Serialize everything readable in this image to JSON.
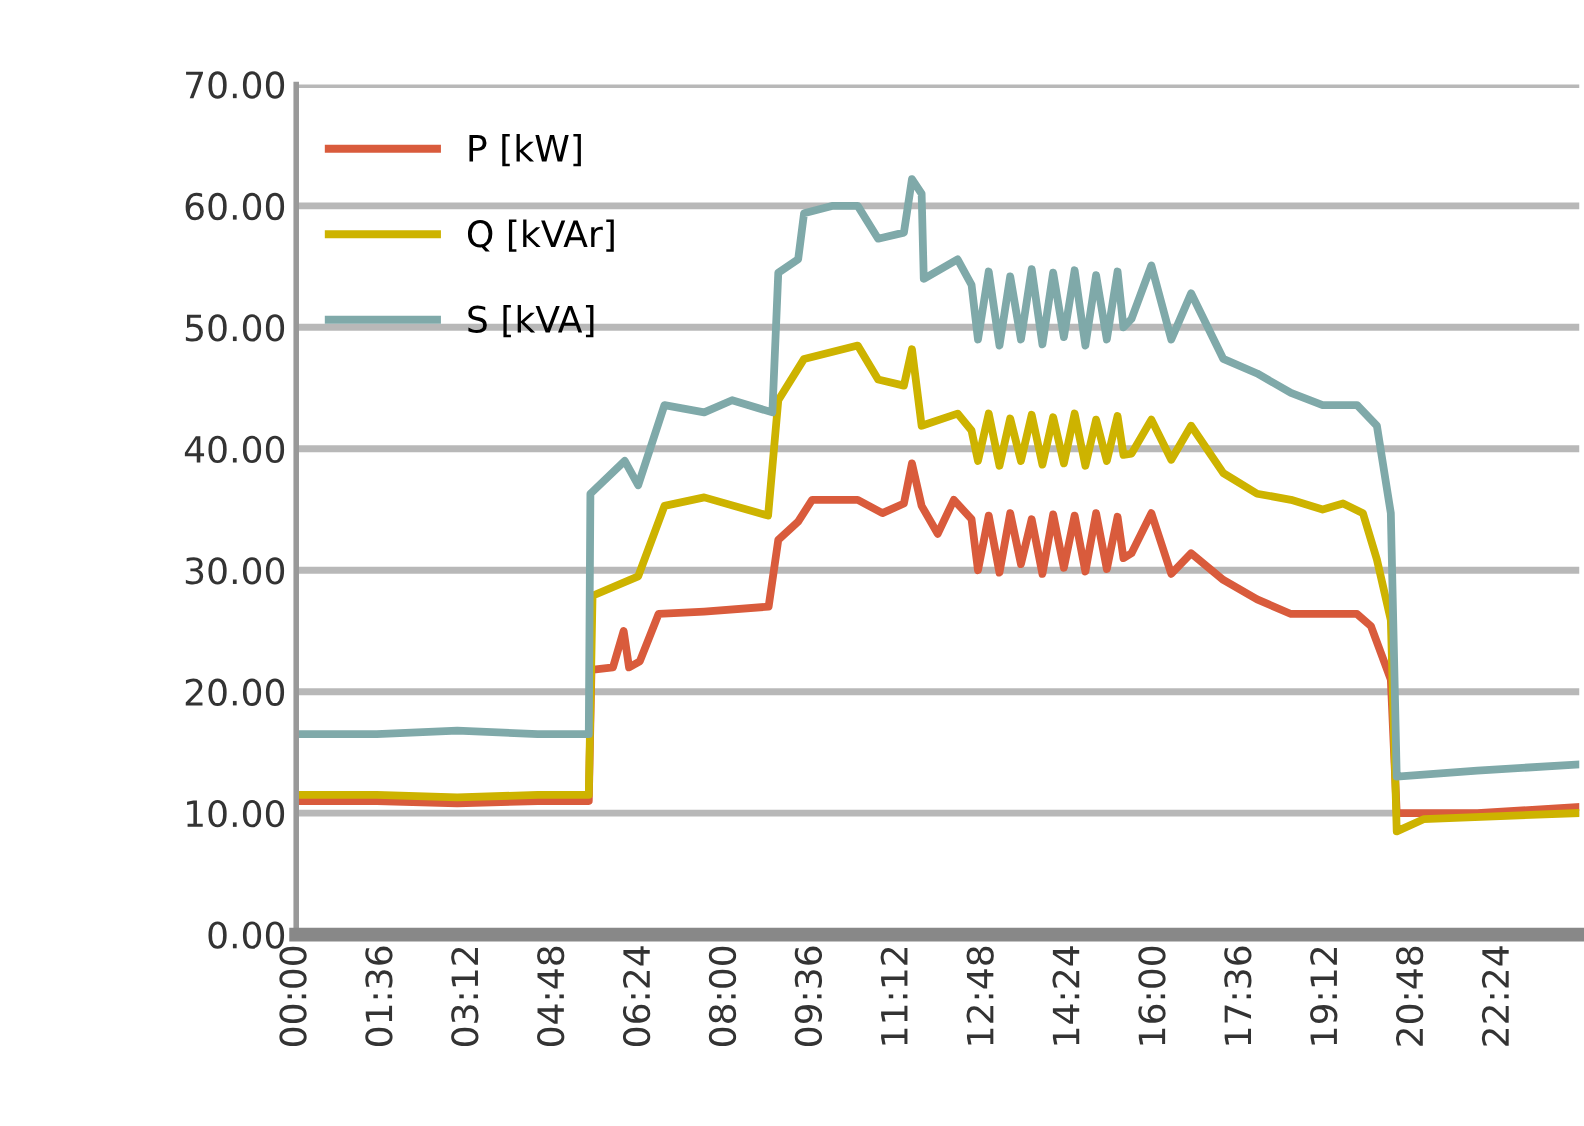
{
  "chart_data": {
    "type": "line",
    "xlim": [
      0,
      23.9
    ],
    "ylim": [
      0,
      70
    ],
    "xticks": [
      {
        "value": 0,
        "label": "00:00"
      },
      {
        "value": 1.6,
        "label": "01:36"
      },
      {
        "value": 3.2,
        "label": "03:12"
      },
      {
        "value": 4.8,
        "label": "04:48"
      },
      {
        "value": 6.4,
        "label": "06:24"
      },
      {
        "value": 8,
        "label": "08:00"
      },
      {
        "value": 9.6,
        "label": "09:36"
      },
      {
        "value": 11.2,
        "label": "11:12"
      },
      {
        "value": 12.8,
        "label": "12:48"
      },
      {
        "value": 14.4,
        "label": "14:24"
      },
      {
        "value": 16,
        "label": "16:00"
      },
      {
        "value": 17.6,
        "label": "17:36"
      },
      {
        "value": 19.2,
        "label": "19:12"
      },
      {
        "value": 20.8,
        "label": "20:48"
      },
      {
        "value": 22.4,
        "label": "22:24"
      }
    ],
    "yticks": [
      {
        "value": 0,
        "label": "0.00"
      },
      {
        "value": 10,
        "label": "10.00"
      },
      {
        "value": 20,
        "label": "20.00"
      },
      {
        "value": 30,
        "label": "30.00"
      },
      {
        "value": 40,
        "label": "40.00"
      },
      {
        "value": 50,
        "label": "50.00"
      },
      {
        "value": 60,
        "label": "60.00"
      },
      {
        "value": 70,
        "label": "70.00"
      }
    ],
    "grid": "y",
    "legend": "top left",
    "marker": "none",
    "line_style": "solid",
    "series": [
      {
        "name": "P [kW]",
        "color": "#d95b3c",
        "x": [
          0,
          1.5,
          3,
          4.5,
          5.45,
          5.5,
          5.9,
          6.1,
          6.2,
          6.4,
          6.75,
          7.6,
          8.8,
          8.98,
          9.35,
          9.61,
          10.46,
          10.92,
          11.32,
          11.47,
          11.65,
          11.95,
          12.25,
          12.58,
          12.7,
          12.9,
          13.1,
          13.3,
          13.5,
          13.7,
          13.9,
          14.1,
          14.3,
          14.5,
          14.7,
          14.9,
          15.1,
          15.3,
          15.41,
          15.56,
          15.93,
          16.3,
          16.67,
          17.27,
          17.9,
          18.53,
          19.76,
          20.02,
          20.39,
          20.5,
          22,
          23.85
        ],
        "values": [
          11,
          11,
          10.8,
          11,
          11,
          21.8,
          22,
          25,
          22,
          22.5,
          26.4,
          26.6,
          27,
          32.5,
          34,
          35.8,
          35.8,
          34.7,
          35.5,
          38.8,
          35.3,
          33,
          35.8,
          34.2,
          30,
          34.5,
          29.8,
          34.7,
          30.5,
          34.2,
          29.7,
          34.6,
          30.2,
          34.5,
          29.9,
          34.7,
          30.1,
          34.4,
          31,
          31.4,
          34.7,
          29.7,
          31.4,
          29.2,
          27.6,
          26.4,
          26.4,
          25.4,
          21,
          10,
          10,
          10.5
        ]
      },
      {
        "name": "Q [kVAr]",
        "color": "#cdb300",
        "x": [
          0,
          1.5,
          3,
          4.5,
          5.45,
          5.52,
          6.37,
          6.86,
          7.6,
          8.79,
          8.98,
          9.46,
          10.46,
          10.84,
          11.32,
          11.47,
          11.65,
          12.32,
          12.58,
          12.7,
          12.9,
          13.1,
          13.3,
          13.5,
          13.7,
          13.9,
          14.1,
          14.3,
          14.5,
          14.7,
          14.9,
          15.1,
          15.3,
          15.41,
          15.56,
          15.93,
          16.3,
          16.67,
          17.27,
          17.9,
          18.53,
          19.12,
          19.5,
          19.87,
          20.13,
          20.39,
          20.5,
          21,
          23.85
        ],
        "values": [
          11.5,
          11.5,
          11.3,
          11.5,
          11.5,
          27.9,
          29.5,
          35.3,
          36,
          34.5,
          44,
          47.4,
          48.5,
          45.7,
          45.2,
          48.2,
          41.9,
          42.9,
          41.5,
          39,
          42.9,
          38.6,
          42.5,
          39,
          42.8,
          38.7,
          42.6,
          38.8,
          42.9,
          38.6,
          42.4,
          39,
          42.7,
          39.5,
          39.6,
          42.4,
          39.1,
          41.9,
          38,
          36.3,
          35.8,
          35,
          35.5,
          34.7,
          30.9,
          25.9,
          8.5,
          9.5,
          10
        ]
      },
      {
        "name": "S [kVA]",
        "color": "#7fa9a9",
        "x": [
          0,
          1.5,
          3,
          4.5,
          5.45,
          5.48,
          6.12,
          6.37,
          6.86,
          7.6,
          8.12,
          8.87,
          8.98,
          9.35,
          9.46,
          9.98,
          10.46,
          10.84,
          11.32,
          11.47,
          11.65,
          11.69,
          12.32,
          12.58,
          12.7,
          12.9,
          13.1,
          13.3,
          13.5,
          13.7,
          13.9,
          14.1,
          14.3,
          14.5,
          14.7,
          14.9,
          15.1,
          15.3,
          15.41,
          15.56,
          15.93,
          16.3,
          16.67,
          17.27,
          17.9,
          18.53,
          19.12,
          19.76,
          20.13,
          20.39,
          20.5,
          22,
          23.85
        ],
        "values": [
          16.5,
          16.5,
          16.8,
          16.5,
          16.5,
          36.3,
          39,
          37,
          43.6,
          43,
          44,
          43,
          54.5,
          55.6,
          59.4,
          60,
          60,
          57.3,
          57.8,
          62.2,
          61,
          54,
          55.6,
          53.5,
          49,
          54.6,
          48.5,
          54.2,
          49,
          54.8,
          48.6,
          54.5,
          49.2,
          54.7,
          48.5,
          54.3,
          49,
          54.6,
          50,
          50.7,
          55.1,
          49,
          52.8,
          47.4,
          46.2,
          44.6,
          43.6,
          43.6,
          41.9,
          34.7,
          13,
          13.5,
          14
        ]
      }
    ]
  }
}
